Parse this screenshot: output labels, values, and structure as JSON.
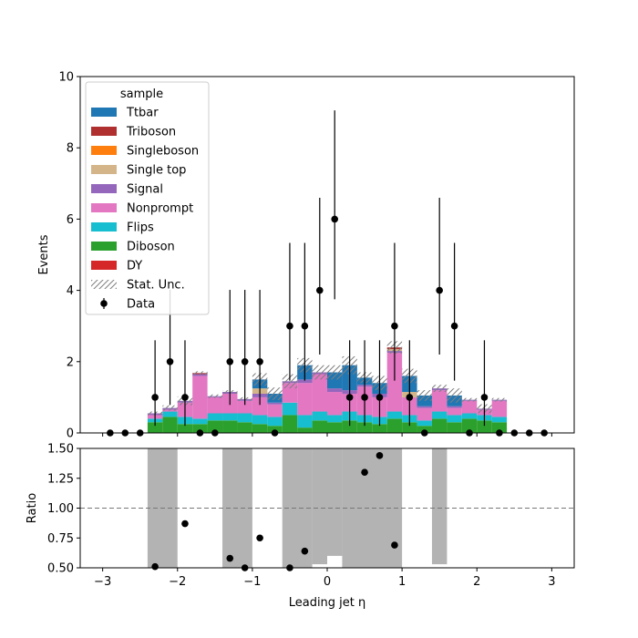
{
  "chart_data": [
    {
      "type": "bar",
      "stacked": true,
      "xlabel": "",
      "ylabel": "Events",
      "xlim": [
        -3.3,
        3.3
      ],
      "ylim": [
        0,
        10
      ],
      "yticks": [
        0,
        2,
        4,
        6,
        8,
        10
      ],
      "bin_edges": [
        -2.4,
        -2.2,
        -2.0,
        -1.8,
        -1.6,
        -1.4,
        -1.2,
        -1.0,
        -0.8,
        -0.6,
        -0.4,
        -0.2,
        0.0,
        0.2,
        0.4,
        0.6,
        0.8,
        1.0,
        1.2,
        1.4,
        1.6,
        1.8,
        2.0,
        2.2,
        2.4
      ],
      "legend_title": "sample",
      "legend_position": "upper-left",
      "series": [
        {
          "name": "DY",
          "color": "#d62728",
          "values": [
            0,
            0,
            0,
            0,
            0,
            0,
            0,
            0,
            0,
            0,
            0,
            0,
            0,
            0,
            0,
            0,
            0,
            0,
            0,
            0,
            0,
            0,
            0,
            0
          ]
        },
        {
          "name": "Diboson",
          "color": "#2ca02c",
          "values": [
            0.3,
            0.45,
            0.25,
            0.25,
            0.35,
            0.35,
            0.3,
            0.25,
            0.2,
            0.5,
            0.15,
            0.35,
            0.3,
            0.35,
            0.3,
            0.25,
            0.4,
            0.3,
            0.2,
            0.4,
            0.3,
            0.4,
            0.35,
            0.3
          ]
        },
        {
          "name": "Flips",
          "color": "#17becf",
          "values": [
            0.1,
            0.15,
            0.2,
            0.15,
            0.2,
            0.2,
            0.25,
            0.25,
            0.25,
            0.35,
            0.35,
            0.25,
            0.2,
            0.25,
            0.2,
            0.2,
            0.2,
            0.2,
            0.15,
            0.2,
            0.2,
            0.15,
            0.15,
            0.15
          ]
        },
        {
          "name": "Nonprompt",
          "color": "#e377c2",
          "values": [
            0.1,
            0.05,
            0.4,
            1.2,
            0.45,
            0.55,
            0.35,
            0.5,
            0.35,
            0.55,
            0.9,
            1.05,
            0.65,
            0.5,
            0.8,
            0.55,
            1.65,
            0.5,
            0.35,
            0.6,
            0.2,
            0.35,
            0.15,
            0.45
          ]
        },
        {
          "name": "Signal",
          "color": "#9467bd",
          "values": [
            0.05,
            0.05,
            0.05,
            0.05,
            0.03,
            0.05,
            0.05,
            0.1,
            0.05,
            0.05,
            0.1,
            0.05,
            0.1,
            0.1,
            0.05,
            0.1,
            0.05,
            0,
            0.05,
            0.05,
            0.05,
            0.03,
            0.03,
            0.03
          ]
        },
        {
          "name": "Single top",
          "color": "#d4b58a",
          "values": [
            0,
            0,
            0,
            0,
            0,
            0,
            0,
            0.15,
            0,
            0,
            0,
            0,
            0,
            0,
            0,
            0,
            0.05,
            0.15,
            0,
            0,
            0,
            0,
            0,
            0
          ]
        },
        {
          "name": "Singleboson",
          "color": "#ff7f0e",
          "values": [
            0,
            0,
            0,
            0,
            0,
            0,
            0,
            0,
            0,
            0,
            0,
            0,
            0,
            0,
            0,
            0,
            0,
            0,
            0,
            0,
            0,
            0,
            0,
            0
          ]
        },
        {
          "name": "Triboson",
          "color": "#b03030",
          "values": [
            0,
            0,
            0,
            0.03,
            0,
            0,
            0,
            0,
            0,
            0,
            0,
            0,
            0,
            0,
            0,
            0,
            0.05,
            0,
            0,
            0,
            0,
            0,
            0,
            0
          ]
        },
        {
          "name": "Ttbar",
          "color": "#1f77b4",
          "values": [
            0,
            0,
            0,
            0,
            0,
            0,
            0,
            0.25,
            0.25,
            0,
            0.4,
            0,
            0.45,
            0.7,
            0.2,
            0.3,
            0,
            0.45,
            0.3,
            0,
            0.3,
            0,
            0,
            0
          ]
        }
      ],
      "stat_unc": [
        0.1,
        0.15,
        0.25,
        0.1,
        0.1,
        0.1,
        0.1,
        0.35,
        0.35,
        0.4,
        0.4,
        0.4,
        0.4,
        0.5,
        0.3,
        0.4,
        0.35,
        0.4,
        0.3,
        0.2,
        0.4,
        0.1,
        0.25,
        0.1
      ],
      "data": {
        "name": "Data",
        "x": [
          -2.9,
          -2.7,
          -2.5,
          -2.3,
          -2.1,
          -1.9,
          -1.7,
          -1.5,
          -1.3,
          -1.1,
          -0.9,
          -0.7,
          -0.5,
          -0.3,
          -0.1,
          0.1,
          0.3,
          0.5,
          0.7,
          0.9,
          1.1,
          1.3,
          1.5,
          1.7,
          1.9,
          2.1,
          2.3,
          2.5,
          2.7,
          2.9
        ],
        "y": [
          0,
          0,
          0,
          1,
          2,
          1,
          0,
          0,
          2,
          2,
          2,
          0,
          3,
          3,
          4,
          6,
          1,
          1,
          1,
          3,
          1,
          0,
          4,
          3,
          0,
          1,
          0,
          0,
          0,
          0
        ]
      },
      "legend": [
        "Ttbar",
        "Triboson",
        "Singleboson",
        "Single top",
        "Signal",
        "Nonprompt",
        "Flips",
        "Diboson",
        "DY",
        "Stat. Unc.",
        "Data"
      ]
    },
    {
      "type": "scatter",
      "xlabel": "Leading jet  η",
      "ylabel": "Ratio",
      "xlim": [
        -3.3,
        3.3
      ],
      "ylim": [
        0.5,
        1.5
      ],
      "yticks": [
        "0.50",
        "0.75",
        "1.00",
        "1.25",
        "1.50"
      ],
      "xticks": [
        "−3",
        "−2",
        "−1",
        "0",
        "1",
        "2",
        "3"
      ],
      "reference_line": 1.0,
      "uncertainty_bands": [
        {
          "x0": -2.4,
          "x1": -2.0,
          "y0": 0.5,
          "y1": 1.5
        },
        {
          "x0": -1.4,
          "x1": -1.0,
          "y0": 0.5,
          "y1": 1.5
        },
        {
          "x0": -0.6,
          "x1": -0.2,
          "y0": 0.5,
          "y1": 1.5
        },
        {
          "x0": -0.2,
          "x1": 0.0,
          "y0": 0.53,
          "y1": 1.5
        },
        {
          "x0": 0.0,
          "x1": 0.2,
          "y0": 0.6,
          "y1": 1.5
        },
        {
          "x0": 0.2,
          "x1": 1.0,
          "y0": 0.5,
          "y1": 1.5
        },
        {
          "x0": 1.4,
          "x1": 1.6,
          "y0": 0.53,
          "y1": 1.5
        }
      ],
      "points": {
        "x": [
          -2.3,
          -1.9,
          -1.3,
          -1.1,
          -0.9,
          -0.5,
          -0.3,
          0.5,
          0.7,
          0.9
        ],
        "y": [
          0.51,
          0.87,
          0.58,
          0.5,
          0.75,
          0.5,
          0.64,
          1.3,
          1.44,
          0.69
        ]
      }
    }
  ]
}
